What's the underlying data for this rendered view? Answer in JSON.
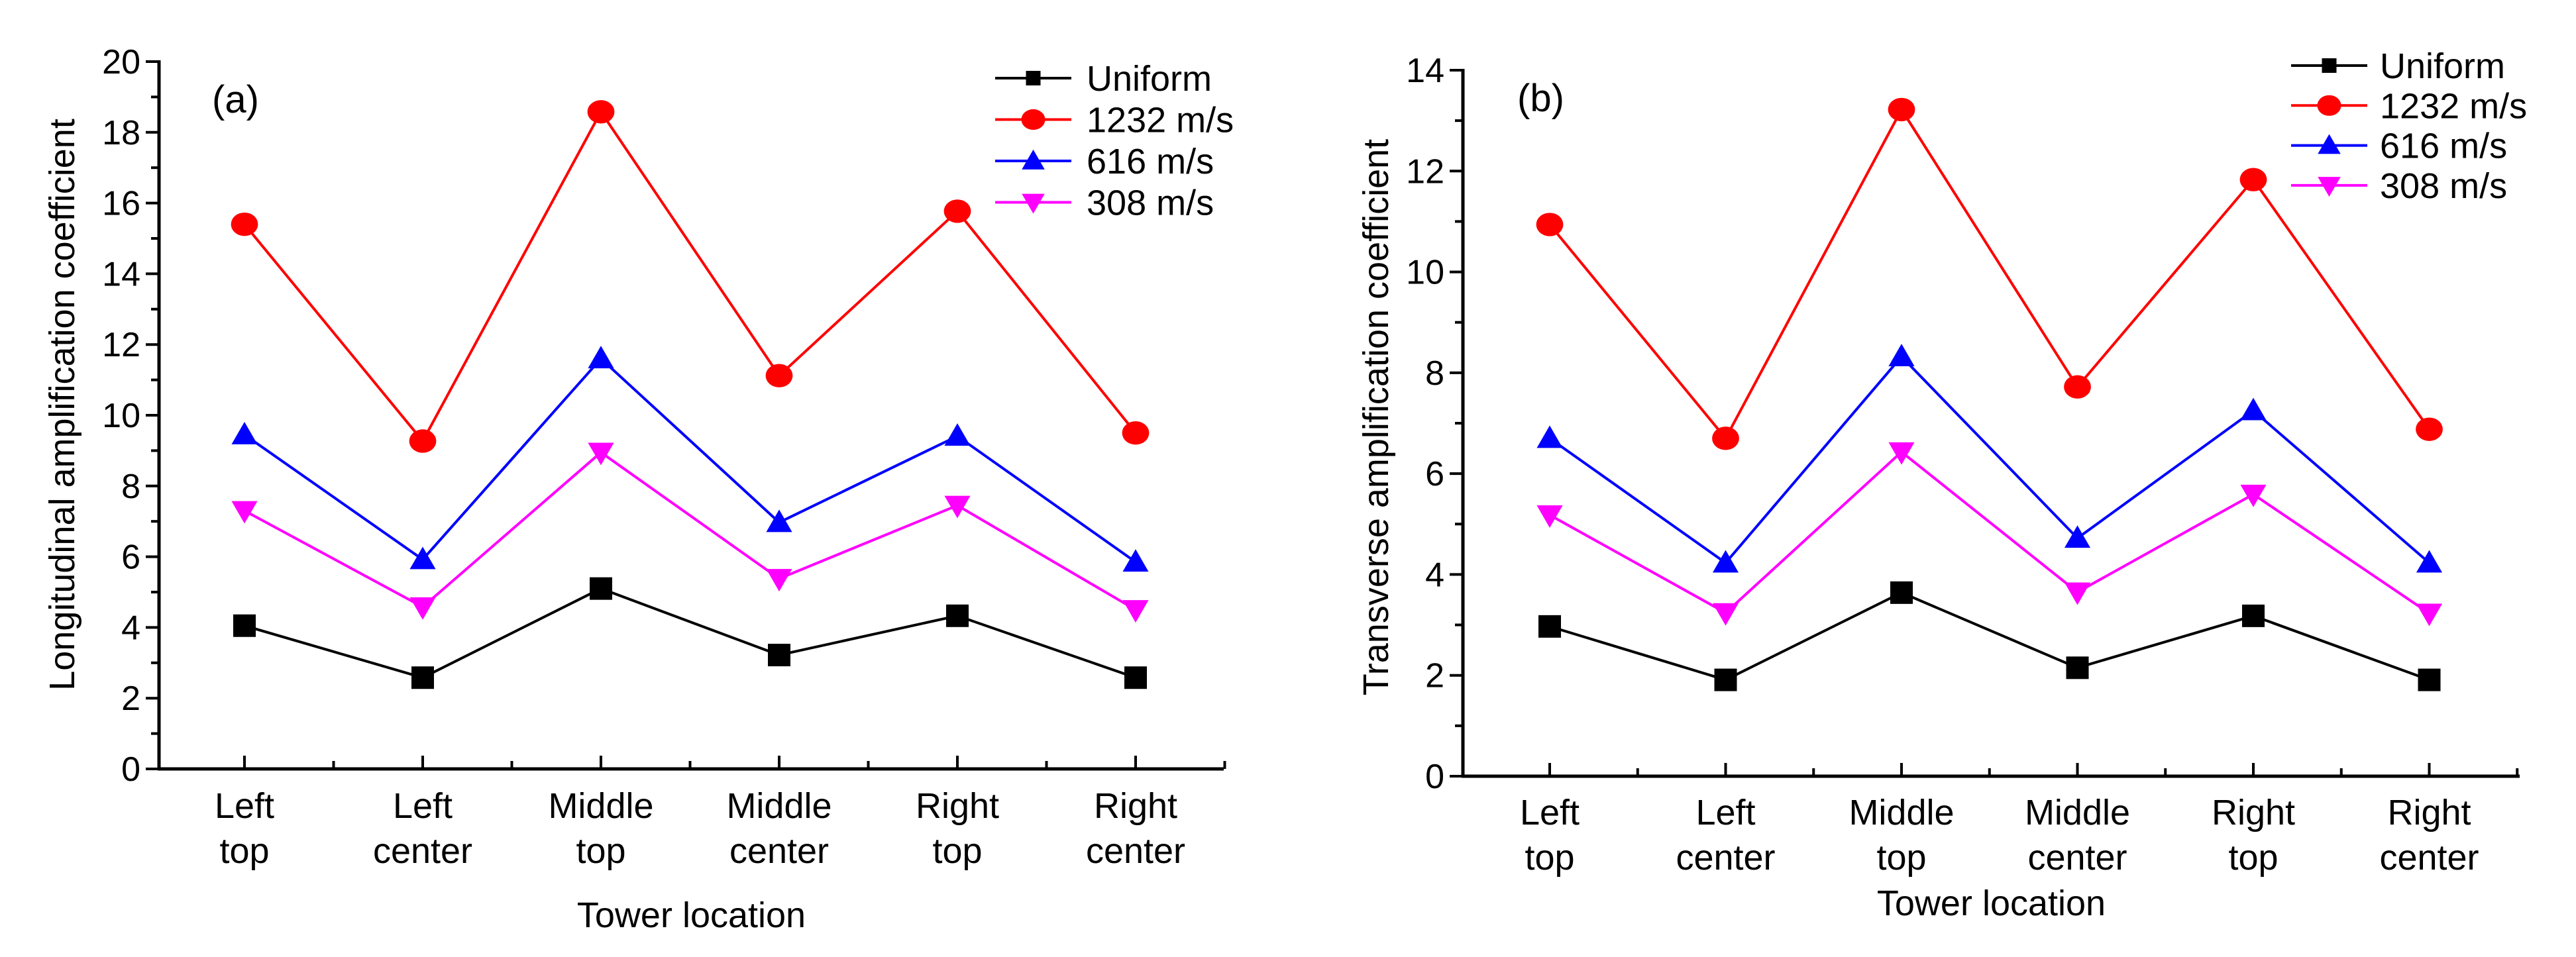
{
  "figure": {
    "panels": [
      "a",
      "b"
    ]
  },
  "chart_data": [
    {
      "type": "line",
      "panel_label": "(a)",
      "title": "",
      "xlabel": "Tower location",
      "ylabel": "Longitudinal amplification coefficient",
      "categories": [
        "Left top",
        "Left center",
        "Middle top",
        "Middle center",
        "Right top",
        "Right center"
      ],
      "category_lines": [
        [
          "Left",
          "top"
        ],
        [
          "Left",
          "center"
        ],
        [
          "Middle",
          "top"
        ],
        [
          "Middle",
          "center"
        ],
        [
          "Right",
          "top"
        ],
        [
          "Right",
          "center"
        ]
      ],
      "ylim": [
        0,
        20
      ],
      "yticks": [
        0,
        2,
        4,
        6,
        8,
        10,
        12,
        14,
        16,
        18,
        20
      ],
      "ytick_labels": [
        "0",
        "2",
        "4",
        "6",
        "8",
        "10",
        "12",
        "14",
        "16",
        "18",
        "20"
      ],
      "y_minor_step": 1,
      "grid": false,
      "legend_position": "top-right",
      "series": [
        {
          "name": "Uniform",
          "color": "#000000",
          "marker": "square",
          "values": [
            4.05,
            2.58,
            5.1,
            3.22,
            4.33,
            2.58
          ]
        },
        {
          "name": "1232 m/s",
          "color": "#ff0000",
          "marker": "circle",
          "values": [
            15.4,
            9.27,
            18.58,
            11.12,
            15.77,
            9.5
          ]
        },
        {
          "name": "616 m/s",
          "color": "#0000ff",
          "marker": "triangle-up",
          "values": [
            9.45,
            5.92,
            11.6,
            6.97,
            9.41,
            5.85
          ]
        },
        {
          "name": "308 m/s",
          "color": "#ff00ff",
          "marker": "triangle-down",
          "values": [
            7.3,
            4.58,
            8.95,
            5.38,
            7.45,
            4.5
          ]
        }
      ]
    },
    {
      "type": "line",
      "panel_label": "(b)",
      "title": "",
      "xlabel": "Tower location",
      "ylabel": "Transverse amplification coefficient",
      "categories": [
        "Left top",
        "Left center",
        "Middle top",
        "Middle center",
        "Right top",
        "Right center"
      ],
      "category_lines": [
        [
          "Left",
          "top"
        ],
        [
          "Left",
          "center"
        ],
        [
          "Middle",
          "top"
        ],
        [
          "Middle",
          "center"
        ],
        [
          "Right",
          "top"
        ],
        [
          "Right",
          "center"
        ]
      ],
      "ylim": [
        0,
        14
      ],
      "yticks": [
        0,
        2,
        4,
        6,
        8,
        10,
        12,
        14
      ],
      "ytick_labels": [
        "0",
        "2",
        "4",
        "6",
        "8",
        "10",
        "12",
        "14"
      ],
      "y_minor_step": 1,
      "grid": false,
      "legend_position": "top-right",
      "series": [
        {
          "name": "Uniform",
          "color": "#000000",
          "marker": "square",
          "values": [
            2.97,
            1.91,
            3.64,
            2.15,
            3.18,
            1.91
          ]
        },
        {
          "name": "1232 m/s",
          "color": "#ff0000",
          "marker": "circle",
          "values": [
            10.94,
            6.7,
            13.22,
            7.72,
            11.83,
            6.88
          ]
        },
        {
          "name": "616 m/s",
          "color": "#0000ff",
          "marker": "triangle-up",
          "values": [
            6.7,
            4.23,
            8.32,
            4.72,
            7.25,
            4.23
          ]
        },
        {
          "name": "308 m/s",
          "color": "#ff00ff",
          "marker": "triangle-down",
          "values": [
            5.18,
            3.24,
            6.43,
            3.65,
            5.59,
            3.23
          ]
        }
      ]
    }
  ]
}
